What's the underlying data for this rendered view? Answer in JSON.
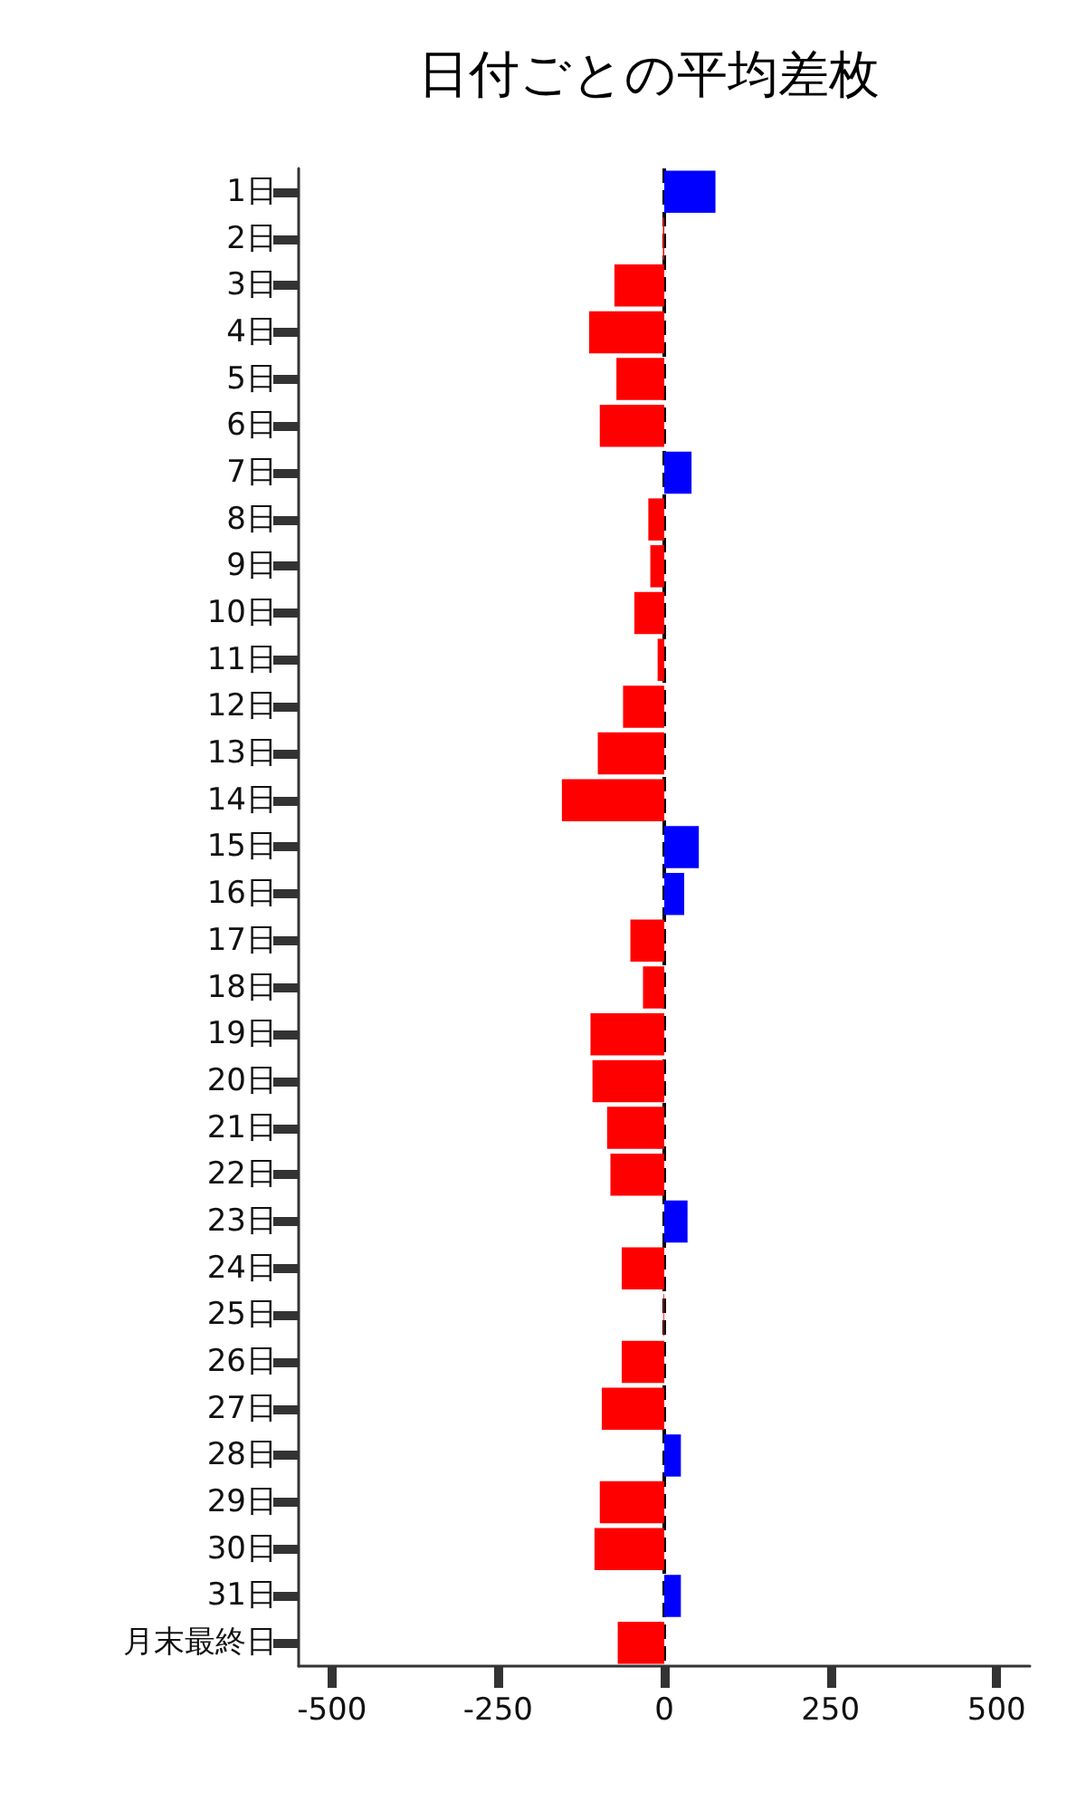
{
  "chart_data": {
    "type": "bar",
    "orientation": "horizontal",
    "title": "日付ごとの平均差枚",
    "categories": [
      "1日",
      "2日",
      "3日",
      "4日",
      "5日",
      "6日",
      "7日",
      "8日",
      "9日",
      "10日",
      "11日",
      "12日",
      "13日",
      "14日",
      "15日",
      "16日",
      "17日",
      "18日",
      "19日",
      "20日",
      "21日",
      "22日",
      "23日",
      "24日",
      "25日",
      "26日",
      "27日",
      "28日",
      "29日",
      "30日",
      "31日",
      "月末最終日"
    ],
    "values": [
      77,
      -2,
      -75,
      -113,
      -72,
      -97,
      41,
      -24,
      -21,
      -45,
      -10,
      -62,
      -100,
      -154,
      52,
      30,
      -51,
      -32,
      -111,
      -108,
      -86,
      -81,
      35,
      -64,
      -1,
      -64,
      -94,
      25,
      -97,
      -105,
      25,
      -70
    ],
    "colors": [
      "#0000ff",
      "#ff0000",
      "#ff0000",
      "#ff0000",
      "#ff0000",
      "#ff0000",
      "#0000ff",
      "#ff0000",
      "#ff0000",
      "#ff0000",
      "#ff0000",
      "#ff0000",
      "#ff0000",
      "#ff0000",
      "#0000ff",
      "#0000ff",
      "#ff0000",
      "#ff0000",
      "#ff0000",
      "#ff0000",
      "#ff0000",
      "#ff0000",
      "#0000ff",
      "#ff0000",
      "#ff0000",
      "#ff0000",
      "#ff0000",
      "#0000ff",
      "#ff0000",
      "#ff0000",
      "#0000ff",
      "#ff0000"
    ],
    "xlim": [
      -550,
      550
    ],
    "xticks": [
      -500,
      -250,
      0,
      250,
      500
    ],
    "ref_lines": [
      {
        "axis": "x",
        "value": 0,
        "color": "#000000",
        "line_style": "dashed"
      }
    ],
    "grid": false
  }
}
